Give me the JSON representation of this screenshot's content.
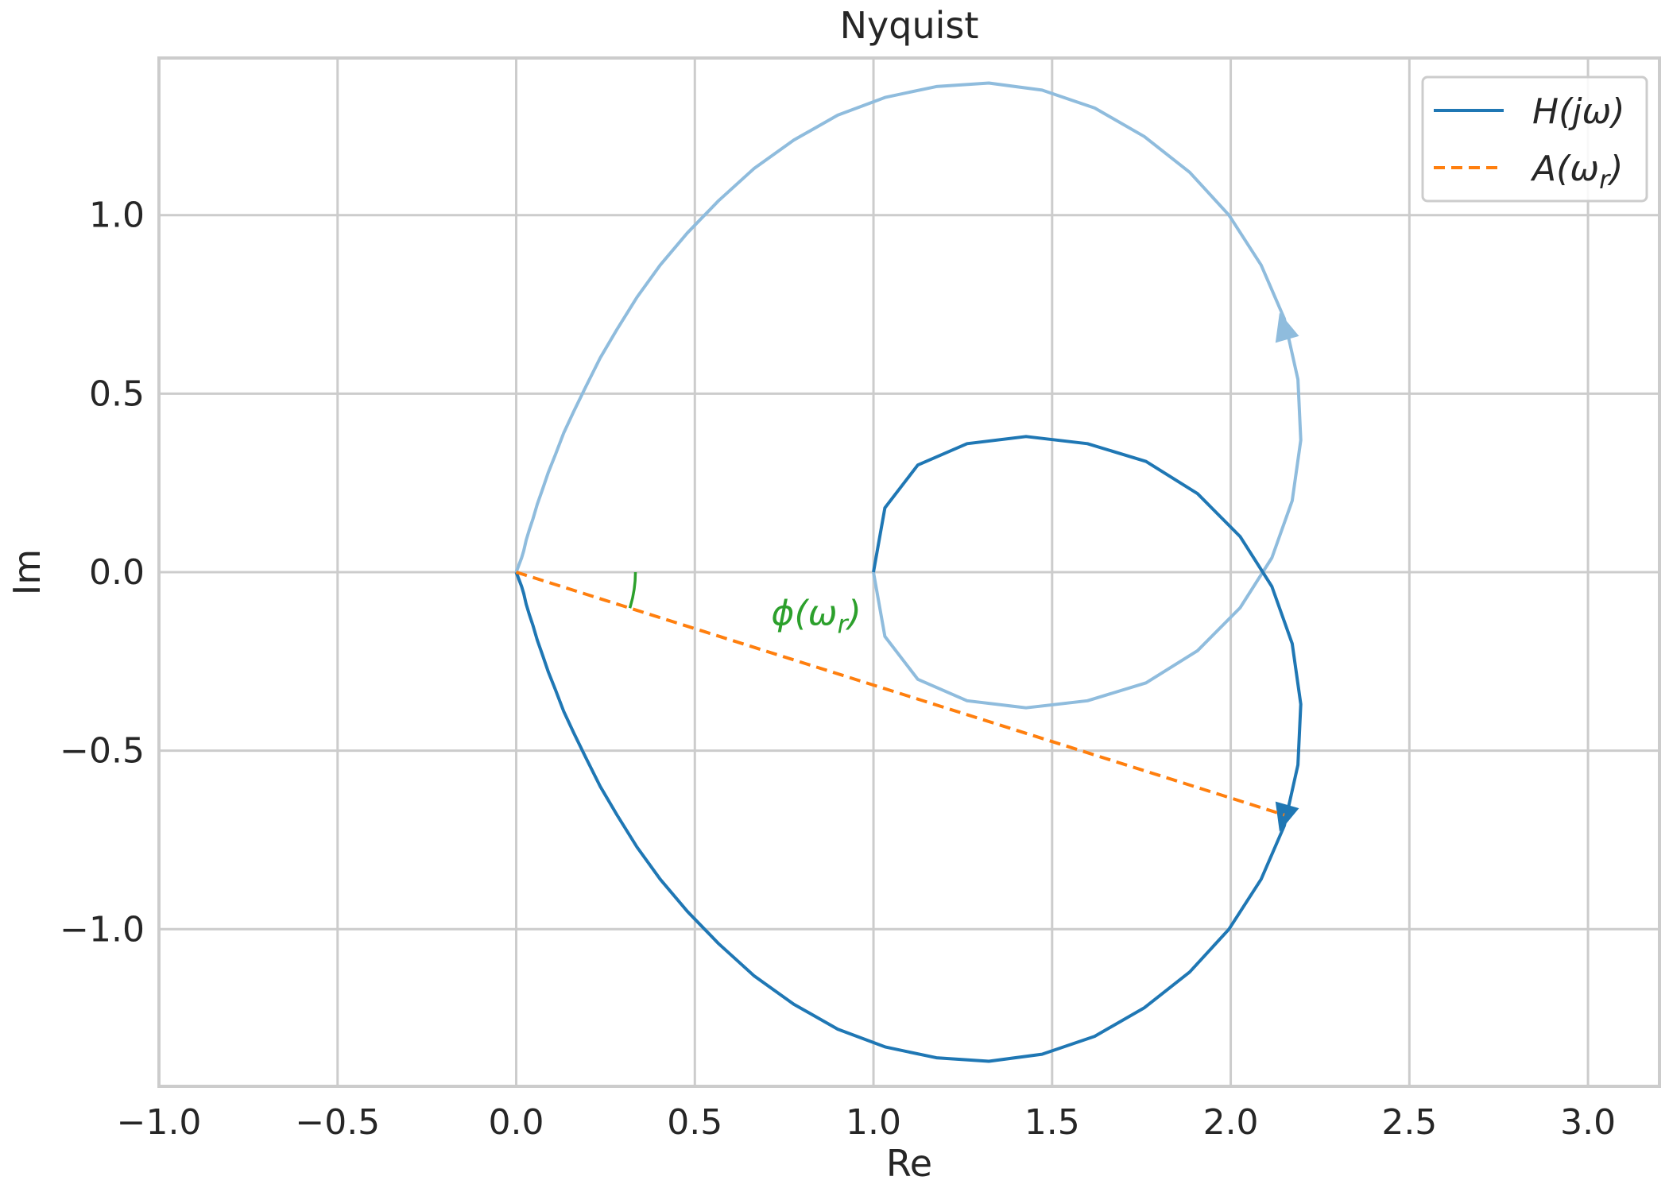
{
  "chart_data": {
    "type": "line",
    "title": "Nyquist",
    "xlabel": "Re",
    "ylabel": "Im",
    "xlim": [
      -1.0,
      3.2
    ],
    "ylim": [
      -1.44,
      1.44
    ],
    "xticks": [
      -1.0,
      -0.5,
      0.0,
      0.5,
      1.0,
      1.5,
      2.0,
      2.5,
      3.0
    ],
    "xtick_labels": [
      "−1.0",
      "−0.5",
      "0.0",
      "0.5",
      "1.0",
      "1.5",
      "2.0",
      "2.5",
      "3.0"
    ],
    "yticks": [
      -1.0,
      -0.5,
      0.0,
      0.5,
      1.0
    ],
    "ytick_labels": [
      "−1.0",
      "−0.5",
      "0.0",
      "0.5",
      "1.0"
    ],
    "grid": true,
    "legend_position": "top-right",
    "series": [
      {
        "name": "H(jω)",
        "style": "solid",
        "color": "#1f77b4",
        "mirror_color": "#8fbcdd",
        "x": [
          1.0,
          1.032,
          1.124,
          1.262,
          1.427,
          1.599,
          1.763,
          1.907,
          2.026,
          2.115,
          2.172,
          2.196,
          2.188,
          2.15,
          2.085,
          1.995,
          1.885,
          1.758,
          1.619,
          1.472,
          1.323,
          1.176,
          1.034,
          0.9,
          0.777,
          0.665,
          0.566,
          0.479,
          0.403,
          0.338,
          0.282,
          0.235,
          0.195,
          0.161,
          0.133,
          0.11,
          0.09,
          0.073,
          0.059,
          0.047,
          0.037,
          0.028,
          0.021,
          0.015,
          0.0
        ],
        "y": [
          0.0,
          -0.18,
          -0.3,
          -0.36,
          -0.38,
          -0.36,
          -0.31,
          -0.22,
          -0.1,
          0.04,
          0.2,
          0.37,
          0.54,
          0.71,
          0.86,
          1.0,
          1.12,
          1.22,
          1.3,
          1.35,
          1.37,
          1.36,
          1.33,
          1.28,
          1.21,
          1.13,
          1.04,
          0.95,
          0.86,
          0.77,
          0.68,
          0.6,
          0.52,
          0.45,
          0.39,
          0.33,
          0.28,
          0.23,
          0.19,
          0.15,
          0.12,
          0.09,
          0.06,
          0.04,
          0.0
        ],
        "arrow_at": [
          2.15,
          -0.68
        ]
      },
      {
        "name": "A(ωr)",
        "style": "dashed",
        "color": "#ff7f0e",
        "x": [
          0.0,
          2.15
        ],
        "y": [
          0.0,
          -0.68
        ]
      }
    ],
    "annotations": [
      {
        "text": "ϕ(ωr)",
        "x": 0.84,
        "y": -0.13,
        "color": "#2ca02c"
      }
    ]
  }
}
